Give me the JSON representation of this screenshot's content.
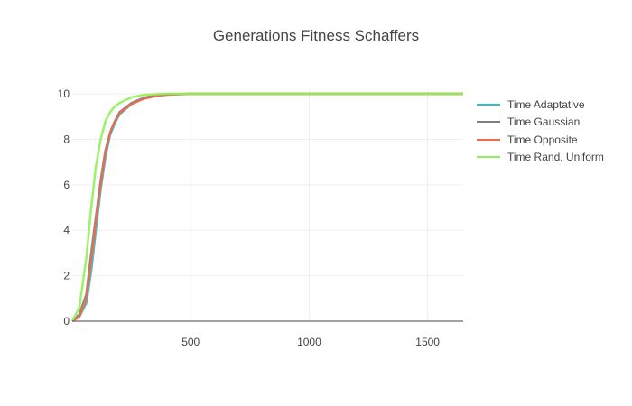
{
  "chart_data": {
    "type": "line",
    "title": "Generations Fitness Schaffers",
    "xlabel": "",
    "ylabel": "",
    "xlim": [
      0,
      1650
    ],
    "ylim": [
      0,
      10.2
    ],
    "x_ticks": [
      500,
      1000,
      1500
    ],
    "y_ticks": [
      0,
      2,
      4,
      6,
      8,
      10
    ],
    "grid": true,
    "legend_position": "top-right",
    "series": [
      {
        "name": "Time Adaptative",
        "color": "#2ebfc9",
        "x": [
          0,
          30,
          60,
          80,
          100,
          120,
          140,
          160,
          180,
          200,
          250,
          300,
          350,
          400,
          500,
          600,
          1650
        ],
        "y": [
          0,
          0.2,
          0.8,
          2.2,
          4.0,
          5.8,
          7.2,
          8.2,
          8.7,
          9.1,
          9.55,
          9.8,
          9.92,
          9.97,
          10,
          10,
          10
        ]
      },
      {
        "name": "Time Gaussian",
        "color": "#7f7f7f",
        "x": [
          0,
          30,
          60,
          80,
          100,
          120,
          140,
          160,
          180,
          200,
          250,
          300,
          350,
          400,
          500,
          600,
          1650
        ],
        "y": [
          0,
          0.3,
          1.2,
          3.0,
          4.6,
          6.2,
          7.5,
          8.3,
          8.8,
          9.2,
          9.6,
          9.82,
          9.93,
          9.98,
          10,
          10,
          10
        ]
      },
      {
        "name": "Time Opposite",
        "color": "#ee6a4f",
        "x": [
          0,
          30,
          60,
          80,
          100,
          120,
          140,
          160,
          180,
          200,
          250,
          300,
          350,
          400,
          500,
          600,
          1650
        ],
        "y": [
          0,
          0.2,
          1.0,
          2.6,
          4.4,
          6.0,
          7.4,
          8.3,
          8.8,
          9.15,
          9.55,
          9.78,
          9.9,
          9.96,
          10,
          10,
          10
        ]
      },
      {
        "name": "Time Rand. Uniform",
        "color": "#8ef25a",
        "x": [
          0,
          30,
          60,
          80,
          100,
          120,
          140,
          160,
          180,
          200,
          250,
          300,
          350,
          400,
          500,
          600,
          1650
        ],
        "y": [
          0,
          0.6,
          2.8,
          5.0,
          6.8,
          8.0,
          8.8,
          9.2,
          9.45,
          9.6,
          9.85,
          9.95,
          9.98,
          10,
          10,
          10,
          10
        ]
      }
    ]
  }
}
